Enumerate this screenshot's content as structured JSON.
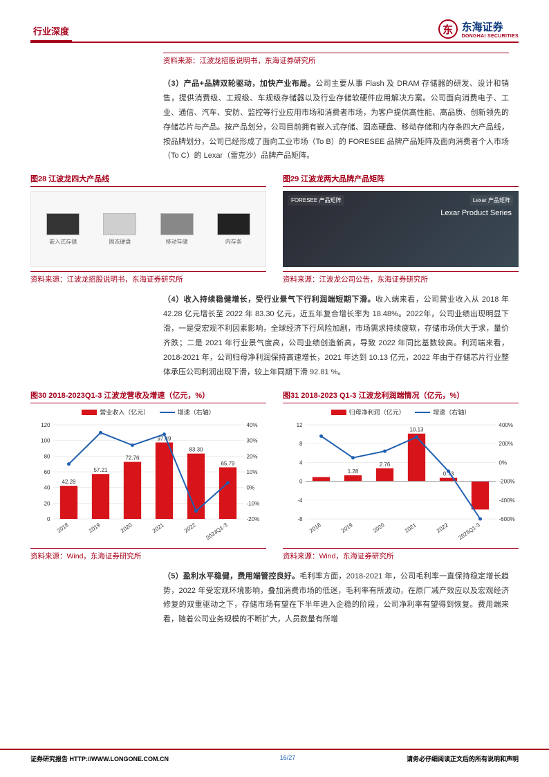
{
  "header": {
    "left": "行业深度",
    "brand_cn": "东海证券",
    "brand_en": "DONGHAI SECURITIES"
  },
  "src1": "资料来源：江波龙招股说明书，东海证券研究所",
  "para3": "（3）产品+品牌双轮驱动，加快产业布局。公司主要从事 Flash 及 DRAM 存储器的研发、设计和销售，提供消费级、工规级、车规级存储器以及行业存储软硬件应用解决方案。公司面向消费电子、工业、通信、汽车、安防、监控等行业应用市场和消费者市场，为客户提供高性能、高品质、创新领先的存储芯片与产品。按产品划分，公司目前拥有嵌入式存储、固态硬盘、移动存储和内存条四大产品线，按品牌划分，公司已经形成了面向工业市场（To B）的 FORESEE 品牌产品矩阵及面向消费者个人市场（To C）的 Lexar（雷克沙）品牌产品矩阵。",
  "fig28": {
    "title": "图28  江波龙四大产品线",
    "items": [
      "嵌入式存储",
      "固态硬盘",
      "移动存储",
      "内存条"
    ],
    "src": "资料来源：江波龙招股说明书，东海证券研究所"
  },
  "fig29": {
    "title": "图29  江波龙两大品牌产品矩阵",
    "labels": [
      "FORESEE 产品矩阵",
      "Lexar 产品矩阵"
    ],
    "series_text": "Lexar Product Series",
    "src": "资料来源：江波龙公司公告，东海证券研究所"
  },
  "para4": "（4）收入持续稳健增长，受行业景气下行利润端短期下滑。收入端来看，公司营业收入从 2018 年 42.28 亿元增长至 2022 年 83.30 亿元，近五年复合增长率为 18.48%。2022年，公司业绩出现明显下滑，一是受宏观不利因素影响，全球经济下行风险加剧，市场需求持续疲软，存储市场供大于求，量价齐跌；二是 2021 年行业景气度高，公司业绩创造新高，导致 2022 年同比基数较高。利润端来看，2018-2021 年，公司归母净利润保持高速增长，2021 年达到 10.13 亿元，2022 年由于存储芯片行业整体承压公司利润出现下滑，较上年同期下滑 92.81 %。",
  "chart30": {
    "title": "图30  2018-2023Q1-3 江波龙营收及增速（亿元，%）",
    "type": "bar+line",
    "legend_bar": "营业收入（亿元）",
    "legend_line": "增速（右轴）",
    "categories": [
      "2018",
      "2019",
      "2020",
      "2021",
      "2022",
      "2023Q1-3"
    ],
    "bar_values": [
      42.28,
      57.21,
      72.76,
      97.49,
      83.3,
      65.79
    ],
    "bar_labels": [
      "42.28",
      "57.21",
      "72.76",
      "97.49",
      "83.30",
      "65.79"
    ],
    "line_values": [
      15,
      35,
      27,
      34,
      -15,
      3
    ],
    "y_left": {
      "min": 0,
      "max": 120,
      "step": 20
    },
    "y_right": {
      "min": -20,
      "max": 40,
      "step": 10
    },
    "bar_color": "#d7141a",
    "line_color": "#1e5fb0",
    "src": "资料来源：Wind，东海证券研究所"
  },
  "chart31": {
    "title": "图31  2018-2023 Q1-3 江波龙利润端情况（亿元，%）",
    "type": "bar+line",
    "legend_bar": "归母净利润（亿元）",
    "legend_line": "增速（右轴）",
    "categories": [
      "2018",
      "2019",
      "2020",
      "2021",
      "2022",
      "2023Q1-3"
    ],
    "bar_values": [
      0.9,
      1.28,
      2.76,
      10.13,
      0.73,
      -6.0
    ],
    "bar_labels": [
      "",
      "1.28",
      "2.76",
      "10.13",
      "0.73",
      ""
    ],
    "line_values": [
      280,
      50,
      120,
      270,
      -93,
      -600
    ],
    "y_left": {
      "min": -8,
      "max": 12,
      "step": 4
    },
    "y_right": {
      "min": -600,
      "max": 400,
      "step": 200
    },
    "bar_color": "#d7141a",
    "line_color": "#1e5fb0",
    "src": "资料来源：Wind，东海证券研究所"
  },
  "para5": "（5）盈利水平稳健，费用端管控良好。毛利率方面，2018-2021 年，公司毛利率一直保持稳定增长趋势，2022 年受宏观环境影响，叠加消费市场的低迷，毛利率有所波动，在原厂减产效应以及宏观经济修复的双重驱动之下，存储市场有望在下半年进入企稳的阶段，公司净利率有望得到恢复。费用端来看，随着公司业务规模的不断扩大，人员数量有所增",
  "footer": {
    "left": "证券研究报告   HTTP://WWW.LONGONE.COM.CN",
    "page": "16/27",
    "right": "请务必仔细阅读正文后的所有说明和声明"
  }
}
